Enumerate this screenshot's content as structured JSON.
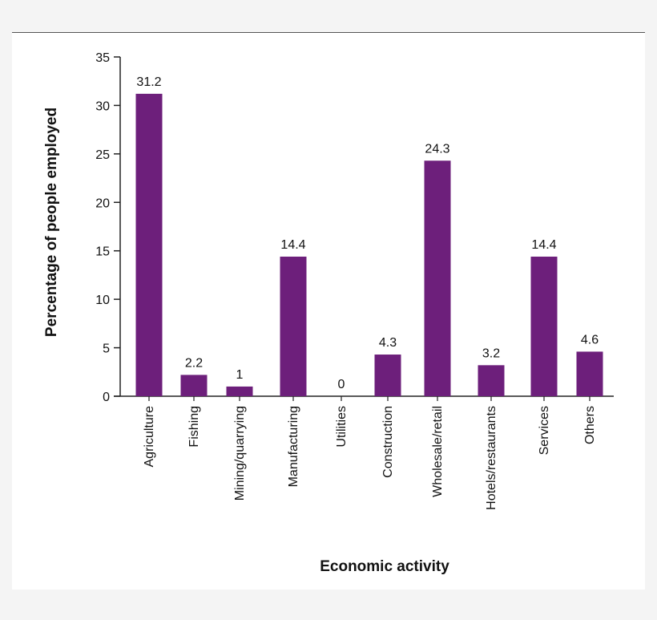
{
  "chart_data": {
    "type": "bar",
    "categories": [
      "Agriculture",
      "Fishing",
      "Mining/quarrying",
      "Manufacturing",
      "Utilities",
      "Construction",
      "Wholesale/retail",
      "Hotels/restaurants",
      "Services",
      "Others"
    ],
    "values": [
      31.2,
      2.2,
      1,
      14.4,
      0,
      4.3,
      24.3,
      3.2,
      14.4,
      4.6
    ],
    "data_labels": [
      "31.2",
      "2.2",
      "1",
      "14.4",
      "0",
      "4.3",
      "24.3",
      "3.2",
      "14.4",
      "4.6"
    ],
    "xlabel": "Economic activity",
    "ylabel": "Percentage of people employed",
    "ylim": [
      0,
      35
    ],
    "yticks": [
      0,
      5,
      10,
      15,
      20,
      25,
      30,
      35
    ],
    "grid": false,
    "bar_color": "#6d1f7b"
  }
}
